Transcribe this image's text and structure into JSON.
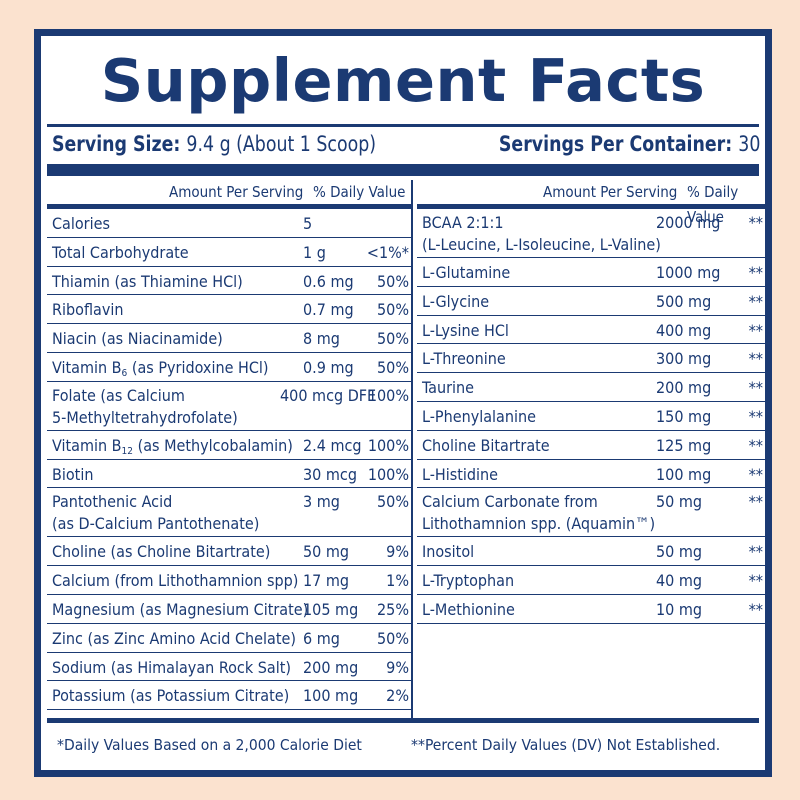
{
  "title": "Supplement Facts",
  "serving": {
    "size_label": "Serving Size:",
    "size_value": "9.4 g (About 1 Scoop)",
    "per_container_label": "Servings Per Container:",
    "per_container_value": "30"
  },
  "left": {
    "amount_header": "Amount Per Serving",
    "dv_header": "% Daily Value",
    "rows": [
      {
        "name": "Calories",
        "amount": "5",
        "dv": ""
      },
      {
        "name": "Total Carbohydrate",
        "amount": "1 g",
        "dv": "<1%*"
      },
      {
        "name": "Thiamin (as Thiamine HCl)",
        "amount": "0.6 mg",
        "dv": "50%"
      },
      {
        "name": "Riboflavin",
        "amount": "0.7 mg",
        "dv": "50%"
      },
      {
        "name": "Niacin (as Niacinamide)",
        "amount": "8 mg",
        "dv": "50%"
      },
      {
        "name_pre": "Vitamin B",
        "name_sub": "6",
        "name_post": " (as Pyridoxine HCl)",
        "amount": "0.9 mg",
        "dv": "50%"
      },
      {
        "name": "Folate (as Calcium",
        "name2": "5-Methyltetrahydrofolate)",
        "amount": "400 mcg DFE",
        "dv": "100%"
      },
      {
        "name_pre": "Vitamin B",
        "name_sub": "12",
        "name_post": " (as Methylcobalamin)",
        "amount": "2.4 mcg",
        "dv": "100%"
      },
      {
        "name": "Biotin",
        "amount": "30 mcg",
        "dv": "100%"
      },
      {
        "name": "Pantothenic Acid",
        "name2": "(as D-Calcium Pantothenate)",
        "amount": "3 mg",
        "dv": "50%"
      },
      {
        "name": "Choline (as Choline Bitartrate)",
        "amount": "50 mg",
        "dv": "9%"
      },
      {
        "name": "Calcium (from Lithothamnion spp)",
        "amount": "17 mg",
        "dv": "1%"
      },
      {
        "name": "Magnesium (as Magnesium Citrate)",
        "amount": "105 mg",
        "dv": "25%"
      },
      {
        "name": "Zinc (as Zinc Amino Acid Chelate)",
        "amount": "6 mg",
        "dv": "50%"
      },
      {
        "name": "Sodium (as Himalayan Rock Salt)",
        "amount": "200 mg",
        "dv": "9%"
      },
      {
        "name": "Potassium (as Potassium Citrate)",
        "amount": "100 mg",
        "dv": "2%"
      }
    ]
  },
  "right": {
    "amount_header": "Amount Per Serving",
    "dv_header": "% Daily Value",
    "rows": [
      {
        "name": "BCAA 2:1:1",
        "name2": "(L-Leucine, L-Isoleucine, L-Valine)",
        "amount": "2000 mg",
        "dv": "**"
      },
      {
        "name": "L-Glutamine",
        "amount": "1000 mg",
        "dv": "**"
      },
      {
        "name": "L-Glycine",
        "amount": "500 mg",
        "dv": "**"
      },
      {
        "name": "L-Lysine HCl",
        "amount": "400 mg",
        "dv": "**"
      },
      {
        "name": "L-Threonine",
        "amount": "300 mg",
        "dv": "**"
      },
      {
        "name": "Taurine",
        "amount": "200 mg",
        "dv": "**"
      },
      {
        "name": "L-Phenylalanine",
        "amount": "150 mg",
        "dv": "**"
      },
      {
        "name": "Choline Bitartrate",
        "amount": "125 mg",
        "dv": "**"
      },
      {
        "name": "L-Histidine",
        "amount": "100 mg",
        "dv": "**"
      },
      {
        "name": "Calcium Carbonate from",
        "name2": "Lithothamnion spp. (Aquamin™)",
        "amount": "50 mg",
        "dv": "**"
      },
      {
        "name": "Inositol",
        "amount": "50 mg",
        "dv": "**"
      },
      {
        "name": "L-Tryptophan",
        "amount": "40 mg",
        "dv": "**"
      },
      {
        "name": "L-Methionine",
        "amount": "10 mg",
        "dv": "**"
      }
    ]
  },
  "footnotes": {
    "daily_values": "*Daily Values Based on a 2,000 Calorie Diet",
    "not_established": "**Percent Daily Values (DV) Not Established."
  },
  "colors": {
    "background": "#fbe2cf",
    "navy": "#1b3a73",
    "panel": "#ffffff"
  }
}
